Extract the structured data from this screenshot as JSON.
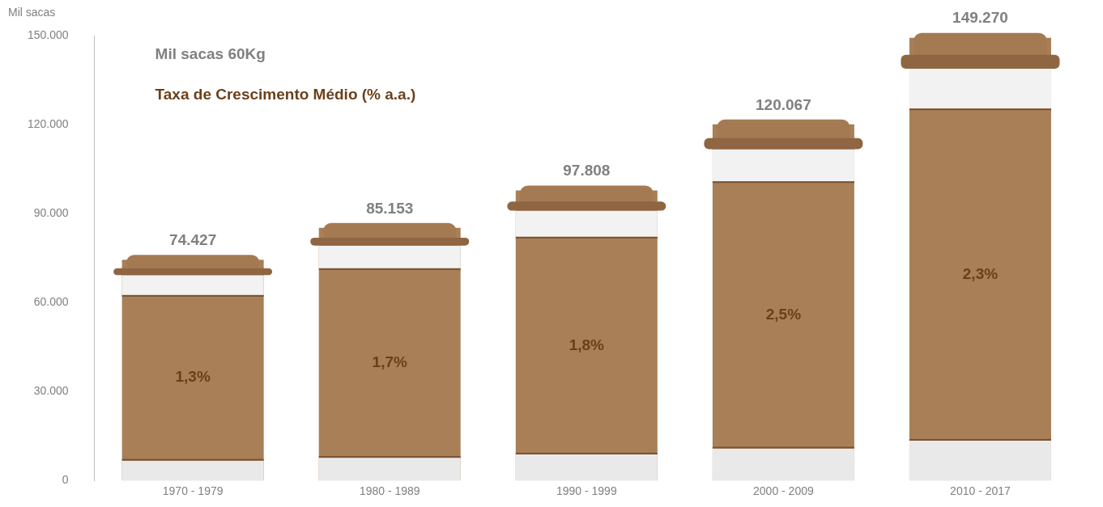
{
  "chart_data": {
    "type": "bar",
    "y_label": "Mil sacas",
    "annotations": [
      {
        "text": "Mil sacas 60Kg",
        "color": "#808080"
      },
      {
        "text": "Taxa de Crescimento Médio (% a.a.)",
        "color": "#6b3f1a"
      }
    ],
    "categories": [
      "1970 - 1979",
      "1980 - 1989",
      "1990 - 1999",
      "2000 - 2009",
      "2010 - 2017"
    ],
    "values": [
      74427,
      85153,
      97808,
      120067,
      149270
    ],
    "value_labels": [
      "74.427",
      "85.153",
      "97.808",
      "120.067",
      "149.270"
    ],
    "growth_rate": [
      1.3,
      1.7,
      1.8,
      2.5,
      2.3
    ],
    "growth_rate_labels": [
      "1,3%",
      "1,7%",
      "1,8%",
      "2,5%",
      "2,3%"
    ],
    "color": "#a87f57",
    "ylim": [
      0,
      150000
    ],
    "yticks": [
      0,
      {
        "value": 30000,
        "label": "30.000"
      },
      {
        "value": 60000,
        "label": "60.000"
      },
      {
        "value": 90000,
        "label": "90.000"
      },
      {
        "value": 120000,
        "label": "120.000"
      },
      {
        "value": 150000,
        "label": "150.000"
      }
    ],
    "grid": false,
    "data_labels": true,
    "legend": false
  }
}
